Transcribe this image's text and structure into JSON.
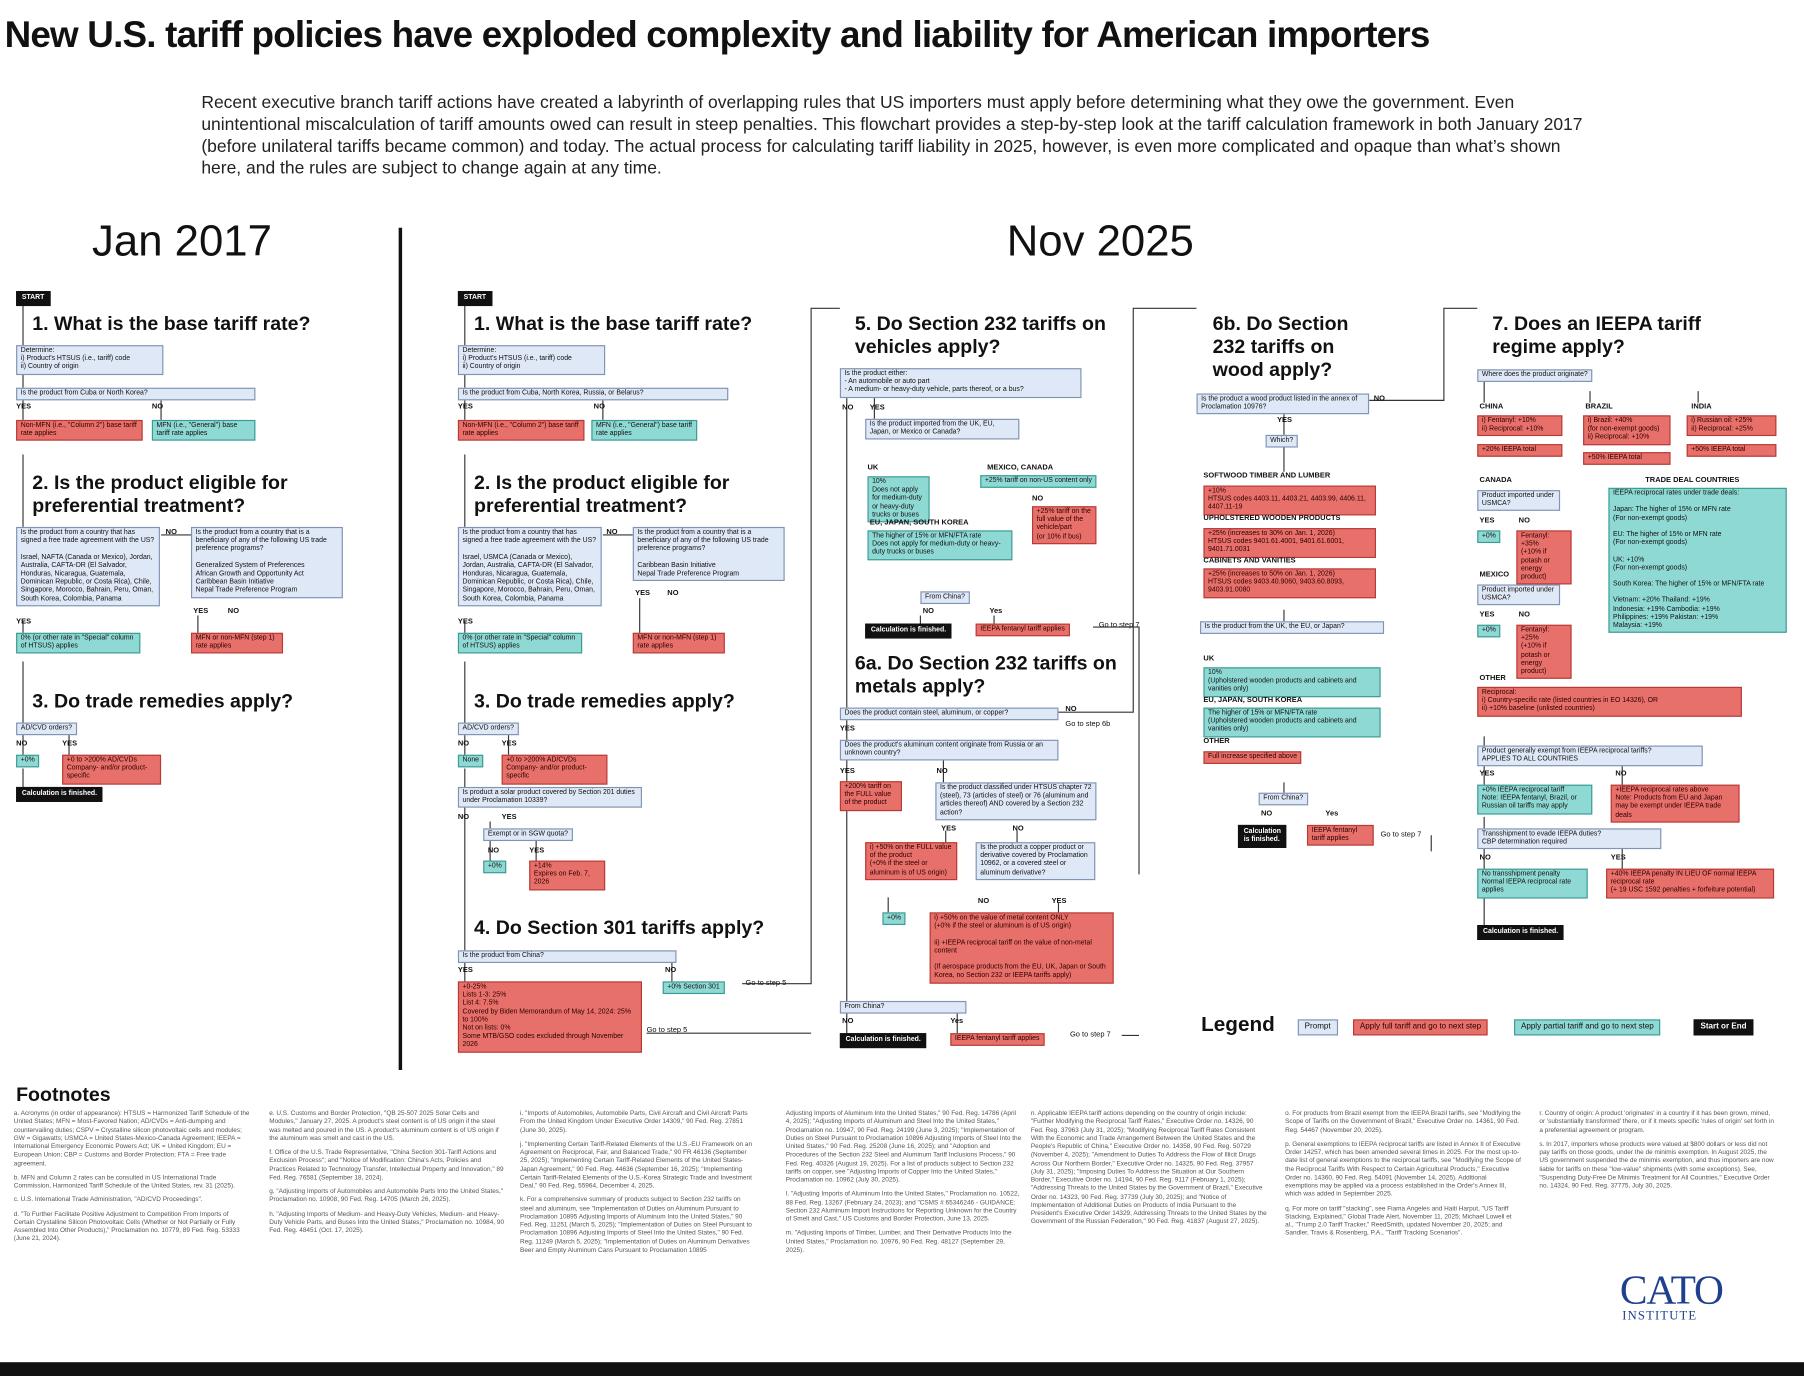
{
  "header": {
    "title": "New U.S. tariff policies have exploded complexity and liability for American importers",
    "intro": "Recent executive branch tariff actions have created a labyrinth of overlapping rules that US importers must apply before determining what they owe the government. Even unintentional miscalculation of tariff amounts owed can result in steep penalties. This flowchart provides a step-by-step look at the tariff calculation framework in both January 2017 (before unilateral tariffs became common) and today. The actual process for calculating tariff liability in 2025, however, is even more complicated and opaque than what’s shown here, and the rules are subject to change again at any time."
  },
  "jan_2017": {
    "nodes": [
      "Jan 2017",
      "START",
      "1. What is the base tariff rate?",
      "Determine:\ni) Product's HTSUS (i.e., tariff) code\nii) Country of origin",
      "Is the product from Cuba or North Korea?",
      "YES",
      "NO",
      "Non-MFN (i.e., \"Column 2\") base tariff rate applies",
      "MFN (i.e., \"General\") base tariff rate applies",
      "2. Is the product eligible for preferential treatment?",
      "Is the product from a country that has signed a free trade agreement with the US?\n\nIsrael, NAFTA (Canada or Mexico), Jordan, Australia, CAFTA-DR (El Salvador, Honduras, Nicaragua, Guatemala, Dominican Republic, or Costa Rica), Chile, Singapore, Morocco, Bahrain, Peru, Oman, South Korea, Colombia, Panama",
      "NO",
      "Is the product from a country that is a beneficiary of any of the following US trade preference programs?\n\nGeneralized System of Preferences\nAfrican Growth and Opportunity Act\nCaribbean Basin Initiative\nNepal Trade Preference Program",
      "YES",
      "YES",
      "NO",
      "0% (or other rate in \"Special\" column of HTSUS) applies",
      "MFN or non-MFN (step 1) rate applies",
      "3. Do trade remedies apply?",
      "AD/CVD orders?",
      "NO",
      "YES",
      "+0%",
      "+0 to >200% AD/CVDs\nCompany- and/or product-specific",
      "Calculation is finished."
    ]
  },
  "nov_2025": {
    "nodes": [
      "Nov 2025",
      "START",
      "1. What is the base tariff rate?",
      "Determine:\ni) Product's HTSUS (i.e., tariff) code\nii) Country of origin",
      "Is the product from Cuba, North Korea, Russia, or Belarus?",
      "YES",
      "NO",
      "Non-MFN (i.e., \"Column 2\") base tariff rate applies",
      "MFN (i.e., \"General\") base tariff rate applies",
      "2. Is the product eligible for preferential treatment?",
      "Is the product from a country that has signed a free trade agreement with the US?\n\nIsrael, USMCA (Canada or Mexico), Jordan, Australia, CAFTA-DR (El Salvador, Honduras, Nicaragua, Guatemala, Dominican Republic, or Costa Rica), Chile, Singapore, Morocco, Bahrain, Peru, Oman, South Korea, Colombia, Panama",
      "NO",
      "Is the product from a country that is a beneficiary of any of the following US trade preference programs?\n\nCaribbean Basin Initiative\nNepal Trade Preference Program",
      "YES",
      "YES",
      "NO",
      "0% (or other rate in \"Special\" column of HTSUS) applies",
      "MFN or non-MFN (step 1) rate applies",
      "3. Do trade remedies apply?",
      "AD/CVD orders?",
      "NO",
      "YES",
      "None",
      "+0 to >200% AD/CVDs\nCompany- and/or product-specific",
      "Is product a solar product covered by Section 201 duties under Proclamation 10339?",
      "NO",
      "YES",
      "Exempt or in SGW quota?",
      "NO",
      "YES",
      "+0%",
      "+14%\nExpires on Feb. 7, 2026",
      "4. Do Section 301 tariffs apply?",
      "Is the product from China?",
      "YES",
      "NO",
      "+0-25%\nLists 1-3: 25%\nList 4: 7.5%\nCovered by Biden Memorandum of May 14, 2024: 25% to 100%\nNot on lists: 0%\nSome MTB/GSO codes excluded through November 2026",
      "+0% Section 301",
      "Go to step 5",
      "Go to step 5",
      "5. Do Section 232 tariffs on vehicles apply?",
      "Is the product either:\n- An automobile or auto part\n- A medium- or heavy-duty vehicle, parts thereof, or a bus?",
      "NO",
      "YES",
      "Is the product imported from the UK, EU, Japan, or Mexico or Canada?",
      "UK",
      "10%\nDoes not apply for medium-duty or heavy-duty trucks or buses",
      "MEXICO, CANADA",
      "+25% tariff on non-US content only",
      "NO",
      "+25% tariff on the full value of the vehicle/part\n(or 10% if bus)",
      "EU, JAPAN, SOUTH KOREA",
      "The higher of 15% or MFN/FTA rate\nDoes not apply for medium-duty or heavy-duty trucks or buses",
      "From China?",
      "NO",
      "Yes",
      "Calculation is finished.",
      "IEEPA fentanyl tariff applies",
      "Go to step 7",
      "6a. Do Section 232 tariffs on metals apply?",
      "Does the product contain steel, aluminum, or copper?",
      "NO",
      "Go to step 6b",
      "YES",
      "Does the product's aluminum content originate from Russia or an unknown country?",
      "YES",
      "NO",
      "+200% tariff on the FULL value of the product",
      "Is the product classified under HTSUS chapter 72 (steel), 73 (articles of steel) or 76 (aluminum and articles thereof) AND covered by a Section 232 action?",
      "YES",
      "NO",
      "i) +50% on the FULL value of the product\n(+0% if the steel or aluminum is of US origin)",
      "Is the product a copper product or derivative covered by Proclamation 10962, or a covered steel or aluminum derivative?",
      "NO",
      "YES",
      "+0%",
      "i) +50% on the value of metal content ONLY\n(+0% if the steel or aluminum is of US origin)\n\nii) +IEEPA reciprocal tariff on the value of non-metal content\n\n(If aerospace products from the EU, UK, Japan or South Korea, no Section 232 or IEEPA tariffs apply)",
      "From China?",
      "NO",
      "Yes",
      "Calculation is finished.",
      "IEEPA fentanyl tariff applies",
      "Go to step 7",
      "6b. Do Section 232 tariffs on wood apply?",
      "Is the product a wood product listed in the annex of Proclamation 10976?",
      "NO",
      "YES",
      "Which?",
      "SOFTWOOD TIMBER AND LUMBER",
      "+10%\nHTSUS codes 4403.11, 4403.21, 4403.99, 4406.11, 4407.11-19",
      "UPHOLSTERED WOODEN PRODUCTS",
      "+25% (increases to 30% on Jan. 1, 2026)\nHTSUS codes 9401.61.4001, 9401.61.6001, 9401.71.0031",
      "CABINETS AND VANITIES",
      "+25% (increases to 50% on Jan. 1, 2026)\nHTSUS codes 9403.40.9060, 9403.60.8093, 9403.91.0080",
      "Is the product from the UK, the EU, or Japan?",
      "UK",
      "10%\n(Upholstered wooden products and cabinets and vanities only)",
      "EU, JAPAN, SOUTH KOREA",
      "The higher of 15% or MFN/FTA rate\n(Upholstered wooden products and cabinets and vanities only)",
      "OTHER",
      "Full increase specified above",
      "From China?",
      "NO",
      "Yes",
      "Calculation is finished.",
      "IEEPA fentanyl tariff applies",
      "Go to step 7",
      "7. Does an IEEPA tariff regime apply?",
      "Where does the product originate?",
      "CHINA",
      "i) Fentanyl: +10%\nii) Reciprocal: +10%",
      "+20% IEEPA total",
      "BRAZIL",
      "i) Brazil: +40%\n(for non-exempt goods)\nii) Reciprocal: +10%",
      "+50% IEEPA total",
      "INDIA",
      "i) Russian oil: +25%\nii) Reciprocal: +25%",
      "+50% IEEPA total",
      "CANADA",
      "Product imported under USMCA?",
      "YES",
      "NO",
      "+0%",
      "Fentanyl: +35%\n(+10% if potash or energy product)",
      "MEXICO",
      "Product imported under USMCA?",
      "YES",
      "NO",
      "+0%",
      "Fentanyl: +25%\n(+10% if potash or energy product)",
      "TRADE DEAL COUNTRIES",
      "IEEPA reciprocal rates under trade deals:\n\nJapan: The higher of 15% or MFN rate\n(For non-exempt goods)\n\nEU: The higher of 15% or MFN rate\n(For non-exempt goods)\n\nUK: +10%\n(For non-exempt goods)\n\nSouth Korea: The higher of 15% or MFN/FTA rate\n\nVietnam: +20%      Thailand: +19%\nIndonesia: +19%    Cambodia: +19%\nPhilippines: +19%  Pakistan: +19%\nMalaysia: +19%",
      "OTHER",
      "Reciprocal:\ni) Country-specific rate (listed countries in EO 14326), OR\nii) +10% baseline (unlisted countries)",
      "Product generally exempt from IEEPA reciprocal tariffs?\nAPPLIES TO ALL COUNTRIES",
      "YES",
      "NO",
      "+0% IEEPA reciprocal tariff\nNote: IEEPA fentanyl, Brazil, or Russian oil tariffs may apply",
      "+IEEPA reciprocal rates above\nNote: Products from EU and Japan may be exempt under IEEPA trade deals",
      "Transshipment to evade IEEPA duties?\nCBP determination required",
      "NO",
      "YES",
      "No transshipment penalty\nNormal IEEPA reciprocal rate applies",
      "+40% IEEPA penalty IN LIEU OF normal IEEPA reciprocal rate\n(+ 19 USC 1592 penalties + forfeiture potential)",
      "Calculation is finished."
    ]
  },
  "legend": {
    "heading": "Legend",
    "items": [
      "Prompt",
      "Apply full tariff and go to next step",
      "Apply partial tariff and go to next step",
      "Start or End"
    ]
  },
  "footnotes": {
    "heading": "Footnotes",
    "columns": [
      [
        "a. Acronyms (in order of appearance): HTSUS = Harmonized Tariff Schedule of the United States; MFN = Most-Favored Nation; AD/CVDs = Anti-dumping and countervailing duties; CSPV = Crystalline silicon photovoltaic cells and modules; GW = Gigawatts; USMCA = United States-Mexico-Canada Agreement; IEEPA = International Emergency Economic Powers Act; UK = United Kingdom; EU = European Union; CBP = Customs and Border Protection; FTA = Free trade agreement.",
        "b. MFN and Column 2 rates can be consulted in US International Trade Commission, Harmonized Tariff Schedule of the United States, rev. 31 (2025).",
        "c. U.S. International Trade Administration, \"AD/CVD Proceedings\".",
        "d. \"To Further Facilitate Positive Adjustment to Competition From Imports of Certain Crystalline Silicon Photovoltaic Cells (Whether or Not Partially or Fully Assembled Into Other Products),\" Proclamation no. 10779, 89 Fed. Reg. 53333 (June 21, 2024)."
      ],
      [
        "e. U.S. Customs and Border Protection, \"QB 25-507 2025 Solar Cells and Modules,\" January 27, 2025. A product's steel content is of US origin if the steel was melted and poured in the US. A product's aluminum content is of US origin if the aluminum was smelt and cast in the US.",
        "f. Office of the U.S. Trade Representative, \"China Section 301-Tariff Actions and Exclusion Process\"; and \"Notice of Modification: China's Acts, Policies and Practices Related to Technology Transfer, Intellectual Property and Innovation,\" 89 Fed. Reg. 76581 (September 18, 2024).",
        "g. \"Adjusting Imports of Automobiles and Automobile Parts Into the United States,\" Proclamation no. 10908, 90 Fed. Reg. 14705 (March 26, 2025).",
        "h. \"Adjusting Imports of Medium- and Heavy-Duty Vehicles, Medium- and Heavy-Duty Vehicle Parts, and Buses Into the United States,\" Proclamation no. 10984, 90 Fed. Reg. 48451 (Oct. 17, 2025)."
      ],
      [
        "i. \"Imports of Automobiles, Automobile Parts, Civil Aircraft and Civil Aircraft Parts From the United Kingdom Under Executive Order 14309,\" 90 Fed. Reg. 27851 (June 30, 2025).",
        "j. \"Implementing Certain Tariff-Related Elements of the U.S.-EU Framework on an Agreement on Reciprocal, Fair, and Balanced Trade,\" 90 FR 46136 (September 25, 2025); \"Implementing Certain Tariff-Related Elements of the United States-Japan Agreement,\" 90 Fed. Reg. 44636 (September 16, 2025); \"Implementing Certain Tariff-Related Elements of the U.S.-Korea Strategic Trade and Investment Deal,\" 90 Fed. Reg. 55964, December 4, 2025.",
        "k. For a comprehensive summary of products subject to Section 232 tariffs on steel and aluminum, see \"Implementation of Duties on Aluminum Pursuant to Proclamation 10895 Adjusting Imports of Aluminum Into the United States,\" 90 Fed. Reg. 11251 (March 5, 2025); \"Implementation of Duties on Steel Pursuant to Proclamation 10896 Adjusting Imports of Steel Into the United States,\" 90 Fed. Reg. 11249 (March 5, 2025); \"Implementation of Duties on Aluminum Derivatives Beer and Empty Aluminum Cans Pursuant to Proclamation 10895"
      ],
      [
        "Adjusting Imports of Aluminum Into the United States,\" 90 Fed. Reg. 14786 (April 4, 2025); \"Adjusting Imports of Aluminum and Steel Into the United States,\" Proclamation no. 10947, 90 Fed. Reg. 24199 (June 3, 2025); \"Implementation of Duties on Steel Pursuant to Proclamation 10896 Adjusting Imports of Steel Into the United States,\" 90 Fed. Reg. 25208 (June 16, 2025); and \"Adoption and Procedures of the Section 232 Steel and Aluminum Tariff Inclusions Process,\" 90 Fed. Reg. 40326 (August 19, 2025). For a list of products subject to Section 232 tariffs on copper, see \"Adjusting Imports of Copper Into the United States,\" Proclamation no. 10962 (July 30, 2025).",
        "l. \"Adjusting Imports of Aluminum Into the United States,\" Proclamation no. 10522, 88 Fed. Reg. 13267 (February 24, 2023); and \"CSMS # 65346246 - GUIDANCE: Section 232 Aluminum Import Instructions for Reporting Unknown for the Country of Smelt and Cast,\" US Customs and Border Protection, June 13, 2025.",
        "m. \"Adjusting Imports of Timber, Lumber, and Their Derivative Products Into the United States,\" Proclamation no. 10976, 90 Fed. Reg. 48127 (September 29, 2025)."
      ],
      [
        "n. Applicable IEEPA tariff actions depending on the country of origin include: \"Further Modifying the Reciprocal Tariff Rates,\" Executive Order no. 14326, 90 Fed. Reg. 37963 (July 31, 2025); \"Modifying Reciprocal Tariff Rates Consistent With the Economic and Trade Arrangement Between the United States and the People's Republic of China,\" Executive Order no. 14358, 90 Fed. Reg. 50729 (November 4, 2025); \"Amendment to Duties To Address the Flow of Illicit Drugs Across Our Northern Border,\" Executive Order no. 14325, 90 Fed. Reg. 37957 (July 31, 2025); \"Imposing Duties To Address the Situation at Our Southern Border,\" Executive Order no. 14194, 90 Fed. Reg. 9117 (February 1, 2025); \"Addressing Threats to the United States by the Government of Brazil,\" Executive Order no. 14323, 90 Fed. Reg. 37739 (July 30, 2025); and \"Notice of Implementation of Additional Duties on Products of India Pursuant to the President's Executive Order 14329, Addressing Threats to the United States by the Government of the Russian Federation,\" 90 Fed. Reg. 41837 (August 27, 2025)."
      ],
      [
        "o. For products from Brazil exempt from the IEEPA Brazil tariffs, see \"Modifying the Scope of Tariffs on the Government of Brazil,\" Executive Order no. 14361, 90 Fed. Reg. 54467 (November 20, 2025).",
        "p. General exemptions to IEEPA reciprocal tariffs are listed in Annex II of Executive Order 14257, which has been amended several times in 2025. For the most up-to-date list of general exemptions to the reciprocal tariffs, see \"Modifying the Scope of the Reciprocal Tariffs With Respect to Certain Agricultural Products,\" Executive Order no. 14360, 90 Fed. Reg. 54091 (November 14, 2025). Additional exemptions may be applied via a process established in the Order's Annex III, which was added in September 2025.",
        "q. For more on tariff \"stacking\", see Fiama Angeles and Haiti Harput, \"US Tariff Stacking, Explained,\" Global Trade Alert, November 11, 2025; Michael Lowell et al., \"Trump 2.0 Tariff Tracker,\" ReedSmith, updated November 20, 2025; and Sandler, Travis & Rosenberg, P.A., \"Tariff Tracking Scenarios\"."
      ],
      [
        "r. Country of origin: A product 'originates' in a country if it has been grown, mined, or 'substantially transformed' there, or if it meets specific 'rules of origin' set forth in a preferential agreement or program.",
        "s. In 2017, importers whose products were valued at $800 dollars or less did not pay tariffs on those goods, under the de minimis exemption. In August 2025, the US government suspended the de minimis exemption, and thus importers are now liable for tariffs on these \"low-value\" shipments (with some exceptions). See, \"Suspending Duty-Free De Minimis Treatment for All Countries,\" Executive Order no. 14324, 90 Fed. Reg. 37775, July 30, 2025."
      ]
    ]
  },
  "logo": {
    "name": "CATO",
    "sub": "INSTITUTE"
  }
}
